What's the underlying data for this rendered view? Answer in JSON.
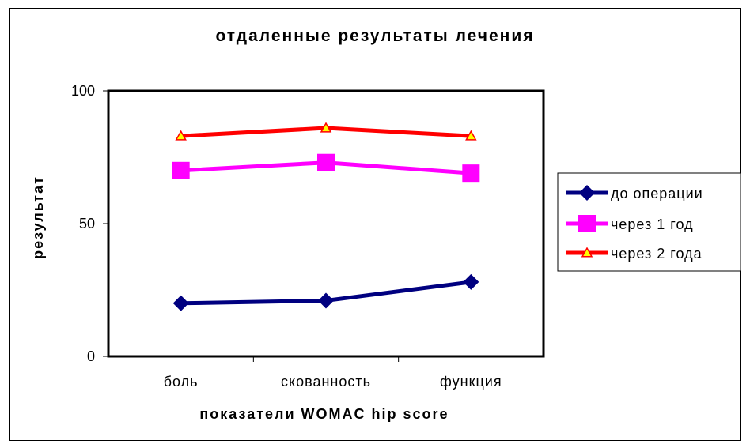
{
  "chart_data": {
    "type": "line",
    "title": "отдаленные результаты лечения",
    "xlabel": "показатели WOMAC hip score",
    "ylabel": "результат",
    "categories": [
      "боль",
      "скованность",
      "функция"
    ],
    "ylim": [
      0,
      100
    ],
    "yticks": [
      0,
      50,
      100
    ],
    "grid": false,
    "legend_position": "right",
    "series": [
      {
        "name": "до операции",
        "values": [
          20,
          21,
          28
        ],
        "color": "#000080",
        "marker": "diamond"
      },
      {
        "name": "через 1 год",
        "values": [
          70,
          73,
          69
        ],
        "color": "#FF00FF",
        "marker": "square"
      },
      {
        "name": "через 2 года",
        "values": [
          83,
          86,
          83
        ],
        "color": "#FF0000",
        "marker": "triangle"
      }
    ]
  }
}
